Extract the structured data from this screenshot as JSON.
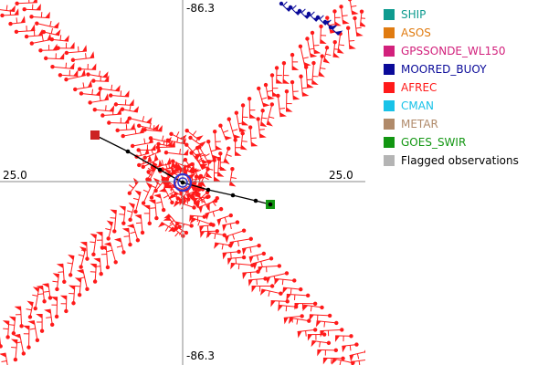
{
  "axes": {
    "top_label": "-86.3",
    "bottom_label": "-86.3",
    "left_label": "25.0",
    "right_label": "25.0"
  },
  "legend": {
    "items": [
      {
        "label": "SHIP",
        "color": "#0e9b8f",
        "name": "ship"
      },
      {
        "label": "ASOS",
        "color": "#e07b10",
        "name": "asos"
      },
      {
        "label": "GPSSONDE_WL150",
        "color": "#d2217c",
        "name": "gpssonde-wl150"
      },
      {
        "label": "MOORED_BUOY",
        "color": "#0a0a99",
        "name": "moored-buoy"
      },
      {
        "label": "AFREC",
        "color": "#ff1a1a",
        "name": "afrec"
      },
      {
        "label": "CMAN",
        "color": "#18c2e8",
        "name": "cman"
      },
      {
        "label": "METAR",
        "color": "#b08a6a",
        "name": "metar"
      },
      {
        "label": "GOES_SWIR",
        "color": "#129612",
        "name": "goes-swir"
      },
      {
        "label": "Flagged observations",
        "color": "#b4b4b4",
        "name": "flagged-observations"
      }
    ]
  },
  "map": {
    "afrec_color": "#ff1a1a",
    "moored_buoy_color": "#0a0a99",
    "track_color": "#000000",
    "storm_center_color": "#3333cc",
    "track_start_color": "#cc2222",
    "track_end_color": "#129612"
  }
}
